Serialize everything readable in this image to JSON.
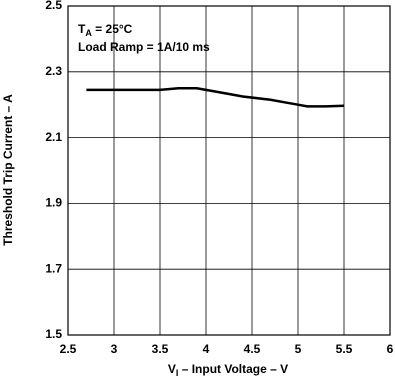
{
  "chart_data": {
    "type": "line",
    "annotation": {
      "main": "T",
      "sub": "A",
      "rest": " = 25°C"
    },
    "annotation2": "Load Ramp = 1A/10 ms",
    "x_label": {
      "main": "V",
      "sub": "I",
      "rest": " – Input Voltage – V"
    },
    "y_label": "Threshold Trip Current – A",
    "x": [
      2.7,
      3.0,
      3.5,
      3.7,
      3.9,
      4.1,
      4.4,
      4.7,
      4.9,
      5.0,
      5.1,
      5.3,
      5.5
    ],
    "values": [
      2.245,
      2.245,
      2.245,
      2.25,
      2.25,
      2.24,
      2.225,
      2.215,
      2.205,
      2.2,
      2.195,
      2.195,
      2.197
    ],
    "color": "#000000",
    "xlim": [
      2.5,
      6
    ],
    "xticks": [
      2.5,
      3,
      3.5,
      4,
      4.5,
      5,
      5.5,
      6
    ],
    "ylim": [
      1.5,
      2.5
    ],
    "yticks": [
      1.5,
      1.7,
      1.9,
      2.1,
      2.3,
      2.5
    ],
    "grid": true
  }
}
